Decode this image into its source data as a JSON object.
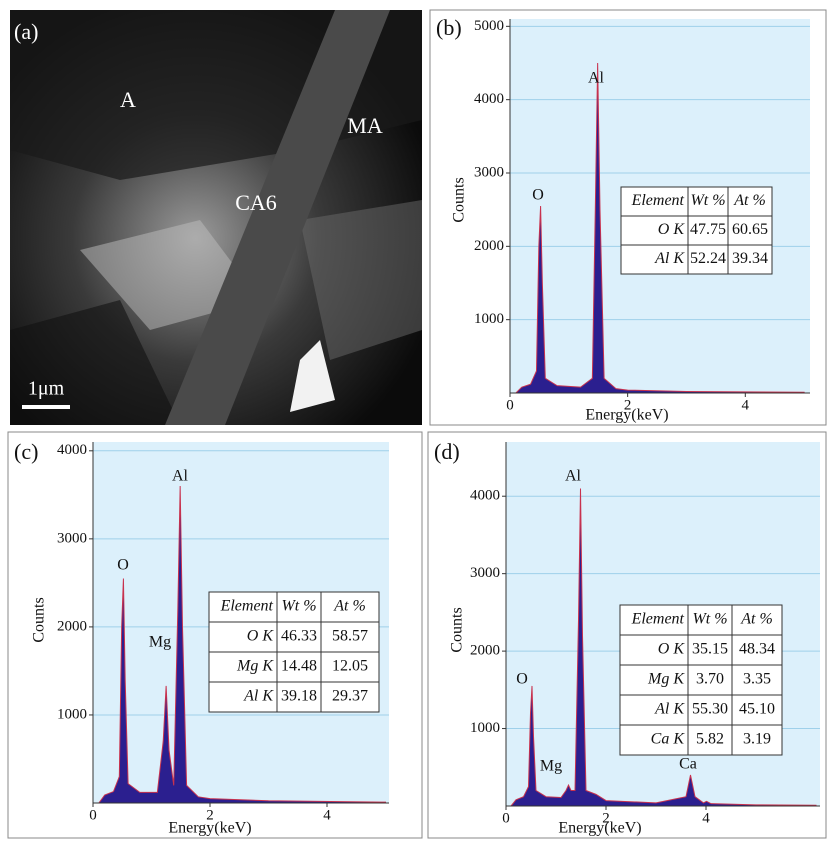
{
  "image_panel": {
    "label": "(a)",
    "annotations": [
      "A",
      "MA",
      "CA6"
    ],
    "scale_bar": "1μm"
  },
  "chart_data": [
    {
      "type": "area",
      "title": "(b)",
      "x_label": "Energy(keV)",
      "y_label": "Counts",
      "color": "#2b1f8f",
      "line_color": "#c8324e",
      "background": "#dcf0fb",
      "grid": true,
      "xlim": [
        0,
        5.1
      ],
      "xticks": [
        0,
        2,
        4
      ],
      "ylim": [
        0,
        5100
      ],
      "yticks": [
        1000,
        2000,
        3000,
        4000,
        5000
      ],
      "x": [
        0.1,
        0.2,
        0.35,
        0.45,
        0.49,
        0.52,
        0.55,
        0.6,
        0.8,
        1.2,
        1.4,
        1.45,
        1.49,
        1.53,
        1.6,
        1.8,
        2.0,
        3.0,
        5.0
      ],
      "values": [
        0,
        80,
        120,
        300,
        2000,
        2550,
        1500,
        200,
        100,
        80,
        200,
        2500,
        4500,
        2500,
        200,
        60,
        40,
        20,
        10
      ],
      "peak_labels": [
        "O",
        "Al"
      ],
      "table": {
        "header": [
          "Element",
          "Wt %",
          "At %"
        ],
        "rows": [
          [
            "O K",
            "47.75",
            "60.65"
          ],
          [
            "Al K",
            "52.24",
            "39.34"
          ]
        ]
      }
    },
    {
      "type": "area",
      "title": "(c)",
      "x_label": "Energy(keV)",
      "y_label": "Counts",
      "color": "#2b1f8f",
      "line_color": "#c8324e",
      "background": "#dcf0fb",
      "grid": true,
      "xlim": [
        0,
        5.06
      ],
      "xticks": [
        0,
        2,
        4
      ],
      "ylim": [
        0,
        4100
      ],
      "yticks": [
        1000,
        2000,
        3000,
        4000
      ],
      "x": [
        0.1,
        0.2,
        0.35,
        0.45,
        0.49,
        0.52,
        0.55,
        0.6,
        0.8,
        1.1,
        1.2,
        1.25,
        1.3,
        1.38,
        1.45,
        1.49,
        1.53,
        1.6,
        1.8,
        2.0,
        3.0,
        5.0
      ],
      "values": [
        0,
        90,
        130,
        300,
        2000,
        2550,
        1400,
        220,
        120,
        120,
        700,
        1330,
        600,
        200,
        2200,
        3600,
        2000,
        200,
        70,
        50,
        25,
        10
      ],
      "peak_labels": [
        "O",
        "Mg",
        "Al"
      ],
      "table": {
        "header": [
          "Element",
          "Wt %",
          "At %"
        ],
        "rows": [
          [
            "O K",
            "46.33",
            "58.57"
          ],
          [
            "Mg K",
            "14.48",
            "12.05"
          ],
          [
            "Al K",
            "39.18",
            "29.37"
          ]
        ]
      }
    },
    {
      "type": "area",
      "title": "(d)",
      "x_label": "Energy(keV)",
      "y_label": "Counts",
      "color": "#2b1f8f",
      "line_color": "#c8324e",
      "background": "#dcf0fb",
      "grid": true,
      "xlim": [
        0,
        6.28
      ],
      "xticks": [
        0,
        2,
        4
      ],
      "ylim": [
        0,
        4700
      ],
      "yticks": [
        1000,
        2000,
        3000,
        4000
      ],
      "x": [
        0.1,
        0.2,
        0.35,
        0.45,
        0.49,
        0.52,
        0.55,
        0.6,
        0.8,
        1.1,
        1.2,
        1.25,
        1.3,
        1.38,
        1.45,
        1.49,
        1.53,
        1.6,
        1.8,
        2.0,
        3.0,
        3.6,
        3.69,
        3.78,
        3.95,
        4.01,
        4.1,
        5.0,
        6.2
      ],
      "values": [
        0,
        80,
        120,
        250,
        1200,
        1550,
        900,
        200,
        120,
        110,
        200,
        270,
        200,
        200,
        2400,
        4100,
        2200,
        200,
        150,
        70,
        40,
        120,
        400,
        120,
        40,
        60,
        30,
        15,
        10
      ],
      "peak_labels": [
        "O",
        "Mg",
        "Al",
        "Ca"
      ],
      "table": {
        "header": [
          "Element",
          "Wt %",
          "At %"
        ],
        "rows": [
          [
            "O K",
            "35.15",
            "48.34"
          ],
          [
            "Mg K",
            "3.70",
            "3.35"
          ],
          [
            "Al K",
            "55.30",
            "45.10"
          ],
          [
            "Ca K",
            "5.82",
            "3.19"
          ]
        ]
      }
    }
  ]
}
